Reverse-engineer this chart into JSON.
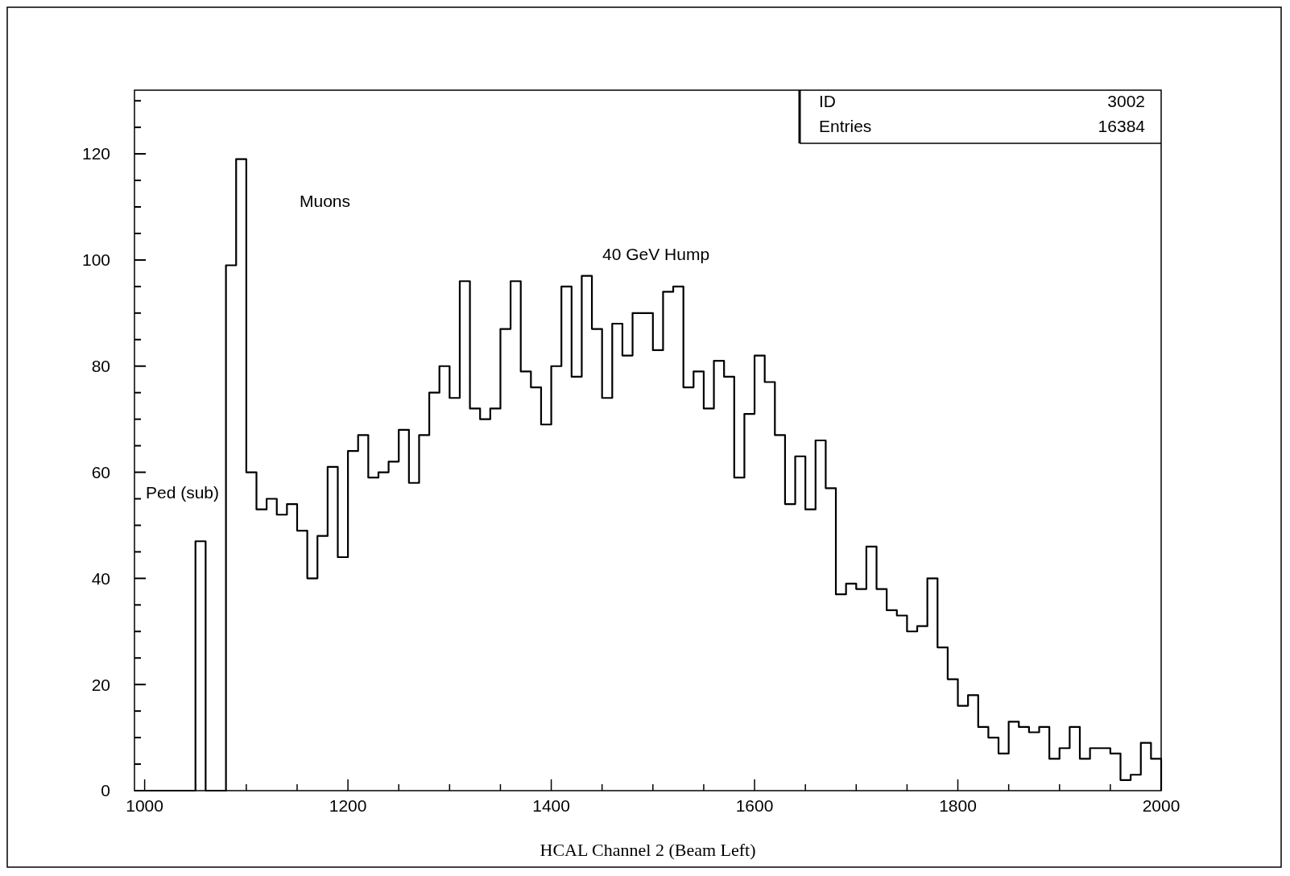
{
  "chart_data": {
    "type": "histogram",
    "xlabel": "HCAL Channel 2 (Beam Left)",
    "bins": [
      1000,
      1010,
      1020,
      1030,
      1040,
      1050,
      1060,
      1070,
      1080,
      1090,
      1100,
      1110,
      1120,
      1130,
      1140,
      1150,
      1160,
      1170,
      1180,
      1190,
      1200,
      1210,
      1220,
      1230,
      1240,
      1250,
      1260,
      1270,
      1280,
      1290,
      1300,
      1310,
      1320,
      1330,
      1340,
      1350,
      1360,
      1370,
      1380,
      1390,
      1400,
      1410,
      1420,
      1430,
      1440,
      1450,
      1460,
      1470,
      1480,
      1490,
      1500,
      1510,
      1520,
      1530,
      1540,
      1550,
      1560,
      1570,
      1580,
      1590,
      1600,
      1610,
      1620,
      1630,
      1640,
      1650,
      1660,
      1670,
      1680,
      1690,
      1700,
      1710,
      1720,
      1730,
      1740,
      1750,
      1760,
      1770,
      1780,
      1790,
      1800,
      1810,
      1820,
      1830,
      1840,
      1850,
      1860,
      1870,
      1880,
      1890,
      1900,
      1910,
      1920,
      1930,
      1940,
      1950,
      1960,
      1970,
      1980,
      1990,
      2000
    ],
    "values": [
      0,
      0,
      0,
      0,
      0,
      47,
      0,
      0,
      99,
      119,
      60,
      53,
      55,
      52,
      54,
      49,
      40,
      48,
      61,
      44,
      64,
      67,
      59,
      60,
      62,
      68,
      58,
      67,
      75,
      80,
      74,
      96,
      72,
      70,
      72,
      87,
      96,
      79,
      76,
      69,
      80,
      95,
      78,
      97,
      87,
      74,
      88,
      82,
      90,
      90,
      83,
      94,
      95,
      76,
      79,
      72,
      81,
      78,
      59,
      71,
      82,
      77,
      67,
      54,
      63,
      53,
      66,
      57,
      37,
      39,
      38,
      46,
      38,
      34,
      33,
      30,
      31,
      40,
      27,
      21,
      16,
      18,
      12,
      10,
      7,
      13,
      12,
      11,
      12,
      6,
      8,
      12,
      6,
      8,
      8,
      7,
      2,
      3,
      9,
      6
    ],
    "color": "#000000",
    "xlim": [
      990,
      2000
    ],
    "ylim": [
      0,
      132
    ],
    "xticks": [
      1000,
      {
        "value": 1050,
        "label": null
      },
      {
        "value": 1100,
        "label": null
      },
      {
        "value": 1150,
        "label": null
      },
      1200,
      {
        "value": 1250,
        "label": null
      },
      {
        "value": 1300,
        "label": null
      },
      {
        "value": 1350,
        "label": null
      },
      1400,
      {
        "value": 1450,
        "label": null
      },
      {
        "value": 1500,
        "label": null
      },
      {
        "value": 1550,
        "label": null
      },
      1600,
      {
        "value": 1650,
        "label": null
      },
      {
        "value": 1700,
        "label": null
      },
      {
        "value": 1750,
        "label": null
      },
      1800,
      {
        "value": 1850,
        "label": null
      },
      {
        "value": 1900,
        "label": null
      },
      {
        "value": 1950,
        "label": null
      },
      2000
    ],
    "yticks": [
      0,
      {
        "value": 5,
        "label": null
      },
      {
        "value": 10,
        "label": null
      },
      {
        "value": 15,
        "label": null
      },
      20,
      {
        "value": 25,
        "label": null
      },
      {
        "value": 30,
        "label": null
      },
      {
        "value": 35,
        "label": null
      },
      40,
      {
        "value": 45,
        "label": null
      },
      {
        "value": 50,
        "label": null
      },
      {
        "value": 55,
        "label": null
      },
      60,
      {
        "value": 65,
        "label": null
      },
      {
        "value": 70,
        "label": null
      },
      {
        "value": 75,
        "label": null
      },
      80,
      {
        "value": 85,
        "label": null
      },
      {
        "value": 90,
        "label": null
      },
      {
        "value": 95,
        "label": null
      },
      100,
      {
        "value": 105,
        "label": null
      },
      {
        "value": 110,
        "label": null
      },
      {
        "value": 115,
        "label": null
      },
      120,
      {
        "value": 125,
        "label": null
      },
      {
        "value": 130,
        "label": null
      }
    ],
    "grid": false,
    "annotations": [
      "Muons",
      "40 GeV Hump",
      "Ped (sub)",
      "ID",
      "3002",
      "Entries",
      "16384"
    ]
  }
}
